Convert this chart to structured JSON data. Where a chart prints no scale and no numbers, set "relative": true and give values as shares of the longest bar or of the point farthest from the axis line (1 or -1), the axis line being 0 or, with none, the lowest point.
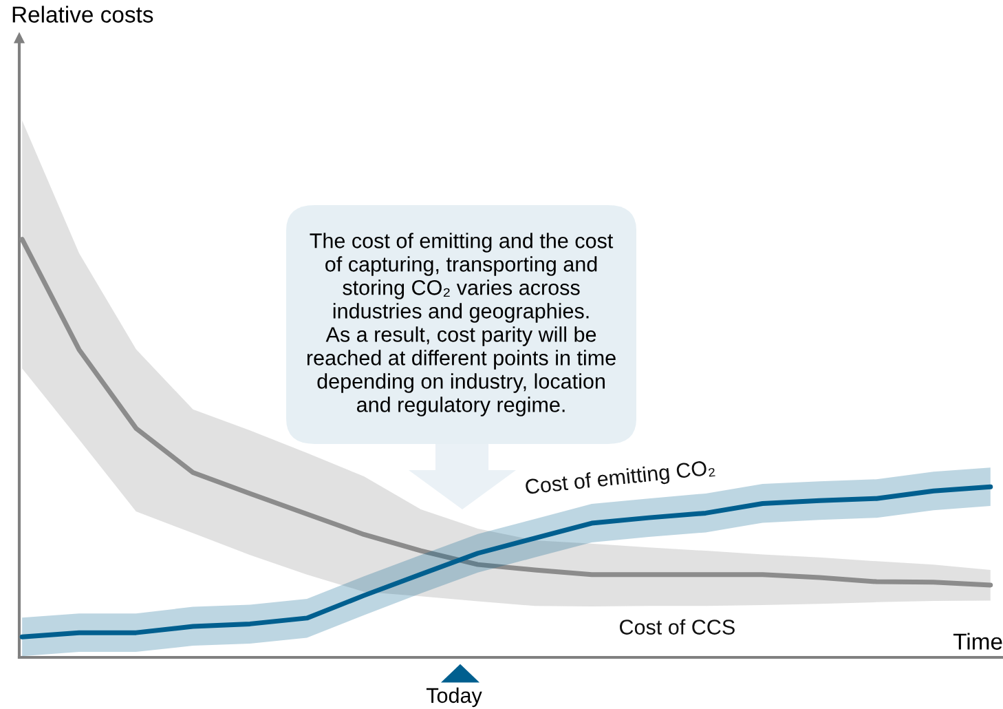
{
  "chart_data": {
    "type": "line",
    "relative": true,
    "xlabel": "Time",
    "categories": [
      null,
      null,
      null,
      null,
      null,
      null,
      null,
      null,
      null,
      null,
      null,
      null,
      null,
      null,
      null,
      null,
      null,
      null
    ],
    "series": [
      {
        "name": "Cost of CCS",
        "color": "#8c8c8c",
        "values": [
          1.0,
          0.736,
          0.548,
          0.442,
          0.392,
          0.343,
          0.294,
          0.255,
          0.222,
          0.209,
          0.198,
          0.198,
          0.198,
          0.198,
          0.191,
          0.181,
          0.18,
          0.173
        ],
        "upper": [
          1.284,
          0.967,
          0.737,
          0.593,
          0.543,
          0.489,
          0.433,
          0.354,
          0.308,
          0.28,
          0.272,
          0.263,
          0.255,
          0.246,
          0.239,
          0.23,
          0.222,
          0.209
        ],
        "lower": [
          0.691,
          0.521,
          0.349,
          0.297,
          0.245,
          0.198,
          0.157,
          0.146,
          0.134,
          0.123,
          0.122,
          0.123,
          0.123,
          0.125,
          0.128,
          0.132,
          0.135,
          0.136
        ]
      },
      {
        "name": "Cost of emitting CO₂",
        "color": "#005f8f",
        "values": [
          0.049,
          0.059,
          0.059,
          0.074,
          0.08,
          0.094,
          0.148,
          0.199,
          0.249,
          0.285,
          0.321,
          0.334,
          0.345,
          0.368,
          0.375,
          0.38,
          0.398,
          0.408
        ],
        "upper": [
          0.095,
          0.105,
          0.105,
          0.121,
          0.126,
          0.14,
          0.194,
          0.245,
          0.295,
          0.331,
          0.367,
          0.38,
          0.392,
          0.415,
          0.421,
          0.426,
          0.444,
          0.454
        ],
        "lower": [
          0.003,
          0.013,
          0.013,
          0.028,
          0.033,
          0.047,
          0.101,
          0.153,
          0.203,
          0.239,
          0.275,
          0.288,
          0.299,
          0.322,
          0.329,
          0.334,
          0.352,
          0.362
        ]
      }
    ],
    "annotations": [
      "The cost of emitting and the cost\nof capturing, transporting and\nstoring CO₂ varies across\nindustries and geographies.\nAs a result, cost parity will be\nreached at different points in time\ndepending on industry, location\nand regulatory regime.",
      "Today",
      "Relative costs"
    ],
    "grid": false,
    "legend": false,
    "marker": "none",
    "line_style": "solid"
  }
}
